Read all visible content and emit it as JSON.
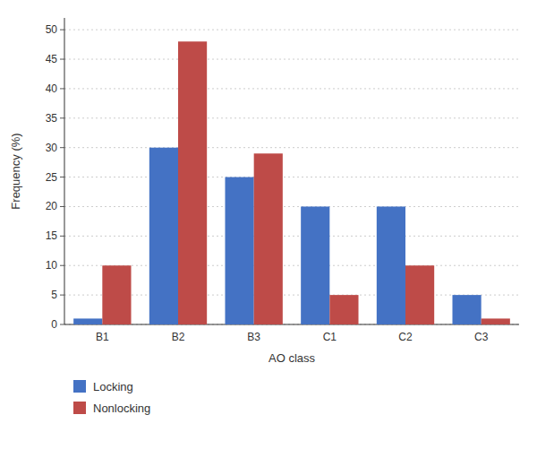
{
  "chart_data": {
    "type": "bar",
    "categories": [
      "B1",
      "B2",
      "B3",
      "C1",
      "C2",
      "C3"
    ],
    "series": [
      {
        "name": "Locking",
        "color": "#4472C4",
        "values": [
          1,
          30,
          25,
          20,
          20,
          5
        ]
      },
      {
        "name": "Nonlocking",
        "color": "#BE4B48",
        "values": [
          10,
          48,
          29,
          5,
          10,
          1
        ]
      }
    ],
    "xlabel": "AO class",
    "ylabel": "Frequency (%)",
    "ylim": [
      0,
      52
    ],
    "yticks": [
      0,
      5,
      10,
      15,
      20,
      25,
      30,
      35,
      40,
      45,
      50
    ],
    "grid": true,
    "legend": "bottom"
  }
}
